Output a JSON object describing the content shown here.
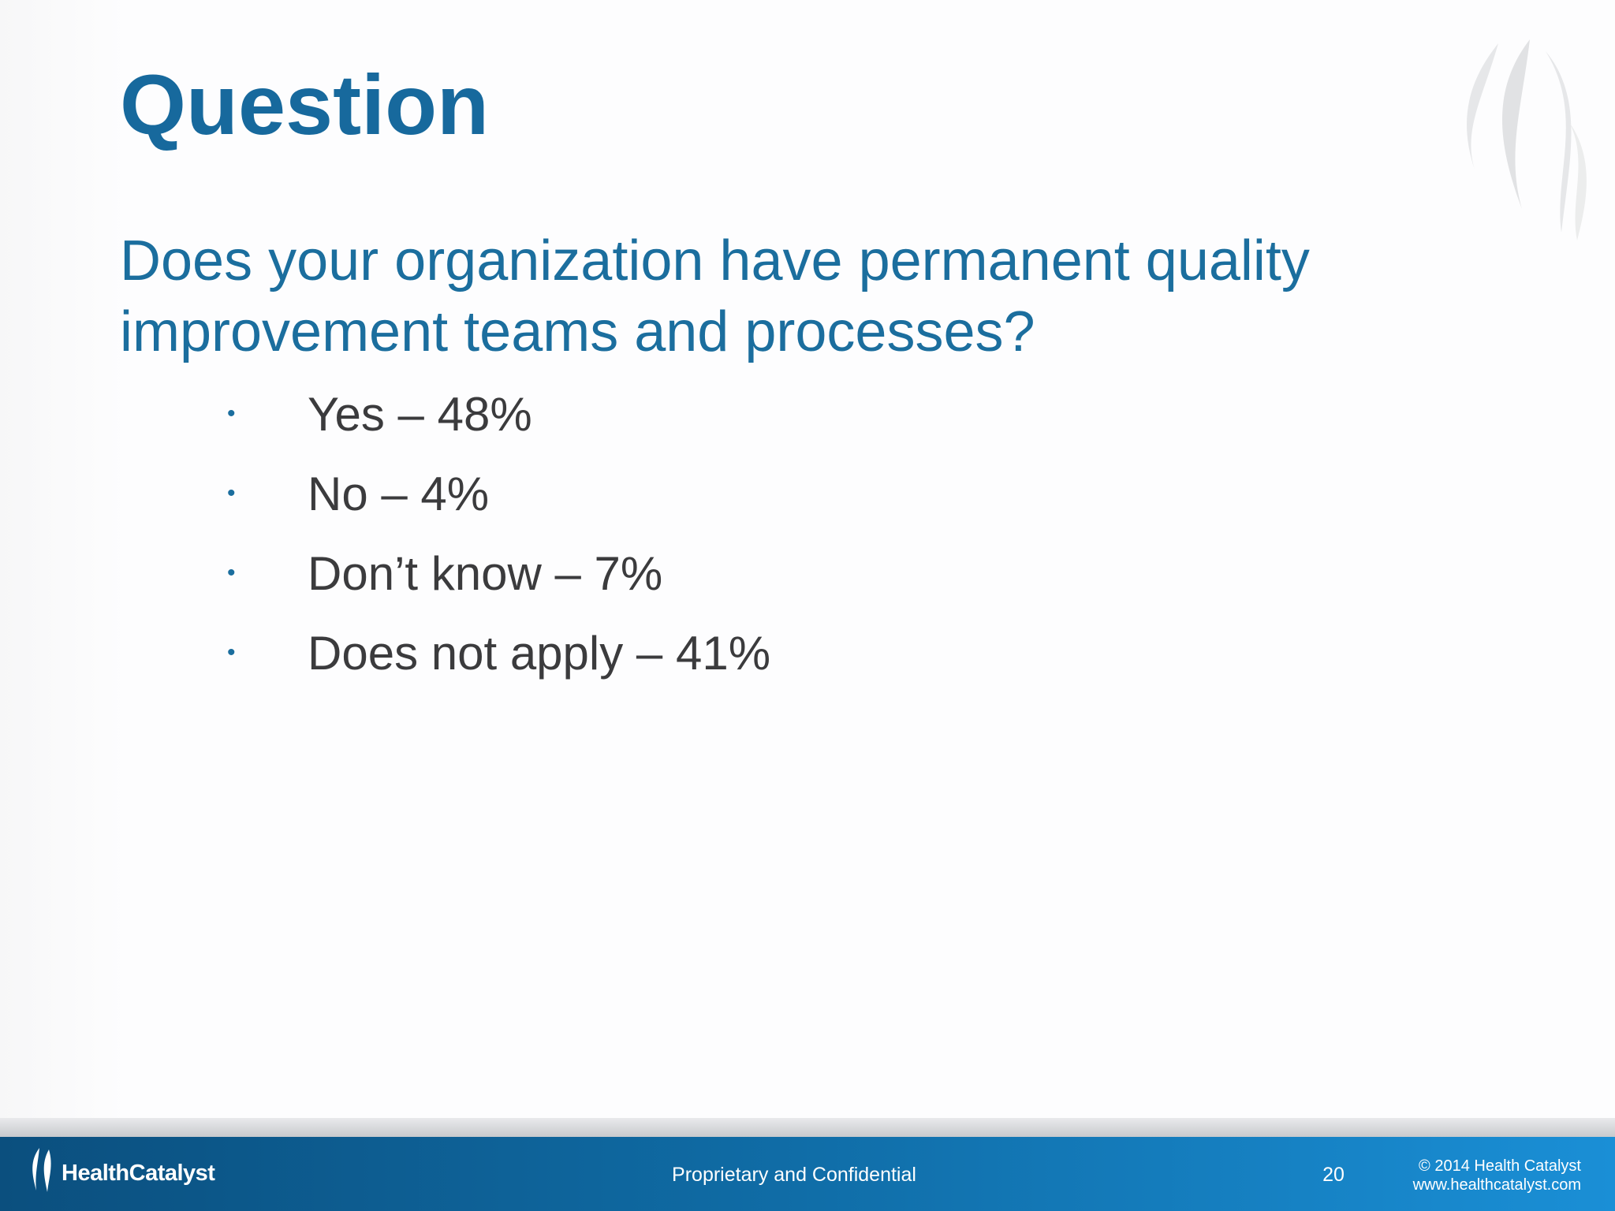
{
  "header": {
    "title": "Question"
  },
  "question": "Does your organization have permanent quality improvement teams and processes?",
  "answers": [
    "Yes – 48%",
    "No – 4%",
    "Don’t know – 7%",
    "Does not apply – 41%"
  ],
  "footer": {
    "logo": "HealthCatalyst",
    "center": "Proprietary and Confidential",
    "page": "20",
    "copyright": "© 2014 Health Catalyst",
    "website": "www.healthcatalyst.com"
  }
}
